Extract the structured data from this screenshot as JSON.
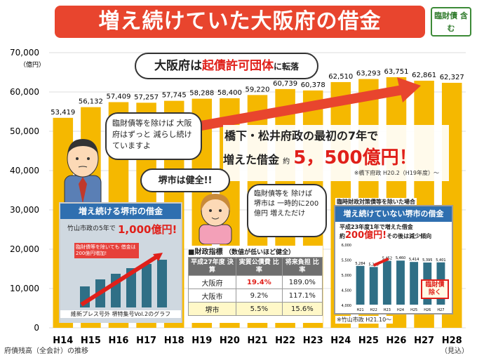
{
  "header": {
    "title": "増え続けていた大阪府の借金",
    "badge": "臨財債 含む"
  },
  "chart_data": {
    "type": "bar",
    "categories": [
      "H14",
      "H15",
      "H16",
      "H17",
      "H18",
      "H19",
      "H20",
      "H21",
      "H22",
      "H23",
      "H24",
      "H25",
      "H26",
      "H27",
      "H28"
    ],
    "values": [
      53419,
      56132,
      57409,
      57257,
      57745,
      58288,
      58400,
      59220,
      60739,
      60378,
      62510,
      63293,
      63751,
      62861,
      62327
    ],
    "value_labels": [
      "53,419",
      "56,132",
      "57,409",
      "57,257",
      "57,745",
      "58,288",
      "58,400",
      "59,220",
      "60,739",
      "60,378",
      "62,510",
      "63,293",
      "63,751",
      "62,861",
      "62,327"
    ],
    "ylim": [
      0,
      70000
    ],
    "yticks": [
      "0",
      "10,000",
      "20,000",
      "30,000",
      "40,000",
      "50,000",
      "60,000",
      "70,000"
    ],
    "ylabel": "（億円）",
    "xnote_last": "（見込）",
    "caption": "府債残高（全会計）の推移",
    "bar_color": "#f5b800"
  },
  "annotations": {
    "kisai": {
      "pre": "大阪府は",
      "mid": "起債許可団体",
      "post": "に転落"
    },
    "hashimoto_line1": "橋下・松井府政の最初の7年で",
    "hashimoto_line2": "増えた借金",
    "hashimoto_yaku": "約",
    "hashimoto_amount": "5，500億円！",
    "hashimoto_note": "※橋下府政 H20.2（H19年度）〜",
    "man_bubble": "臨財債等を除けば 大阪府はずっと 減らし続けていますよ",
    "sakai_bubble": "堺市は健全!!",
    "woman_bubble": "臨財債等を 除けば 堺市は 一時的に200億円 増えただけ"
  },
  "inset_left": {
    "title": "増え続ける堺市の借金",
    "subtitle": "竹山市政の5年で",
    "amount": "1,000億円!",
    "box_text": "臨財債等を除いても 借金は200億円増加!",
    "source": "維新プレス号外 堺特集号Vol.2のグラフ"
  },
  "inset_right": {
    "top_note": "臨時財政対策債等を除いた場合",
    "title": "増え続けていない堺市の借金",
    "line1": "平成23年度1年で増えた借金",
    "yaku": "約",
    "amount": "200億円!",
    "line2": "その後は減少傾向",
    "stamp": "臨財債 除く",
    "source": "※竹山市政 H21.10〜",
    "categories": [
      "H21",
      "H22",
      "H23",
      "H24",
      "H25",
      "H26",
      "H27"
    ],
    "values": [
      5284,
      5248,
      5452,
      5460,
      5414,
      5395,
      5401
    ],
    "value_labels": [
      "5,284",
      "5,248",
      "5,452",
      "5,460",
      "5,414",
      "5,395",
      "5,401"
    ],
    "yticks": [
      "4,000",
      "4,500",
      "5,000",
      "5,500",
      "6,000"
    ],
    "ylim": [
      4000,
      6000
    ]
  },
  "financial": {
    "title": "■財政指標",
    "note": "（数値が低いほど健全）",
    "headers": [
      "平成27年度 決算",
      "実質公債費 比率",
      "将来負担 比率"
    ],
    "rows": [
      {
        "name": "大阪府",
        "a": "19.4%",
        "b": "189.0%"
      },
      {
        "name": "大阪市",
        "a": "9.2%",
        "b": "117.1%"
      },
      {
        "name": "堺市",
        "a": "5.5%",
        "b": "15.6%"
      }
    ]
  },
  "colors": {
    "title_bg": "#e8452e",
    "accent": "#e0201a",
    "bar": "#f5b800",
    "inset_head": "#2f6fb0"
  }
}
